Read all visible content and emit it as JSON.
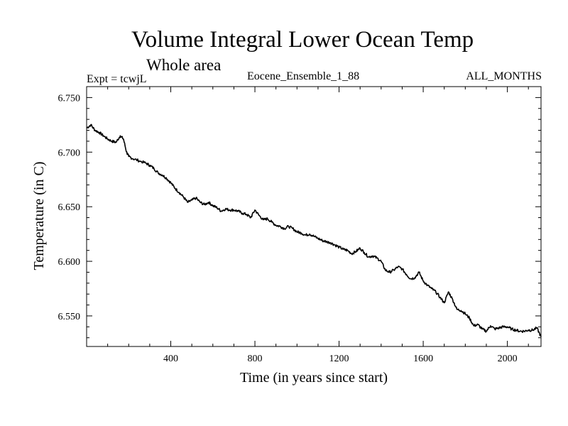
{
  "header": {
    "title": "Volume Integral Lower Ocean Temp",
    "subtitle": "Whole area",
    "expt": "Expt = tcwjL",
    "ensemble": "Eocene_Ensemble_1_88",
    "months": "ALL_MONTHS"
  },
  "chart_data": {
    "type": "line",
    "title": "Volume Integral Lower Ocean Temp",
    "subtitle": "Whole area",
    "xlabel": "Time (in years since start)",
    "ylabel": "Temperature (in C)",
    "xlim": [
      0,
      2160
    ],
    "ylim": [
      6.522,
      6.76
    ],
    "xticks": [
      400,
      800,
      1200,
      1600,
      2000
    ],
    "xtick_labels": [
      "400",
      "800",
      "1200",
      "1600",
      "2000"
    ],
    "yticks": [
      6.55,
      6.6,
      6.65,
      6.7,
      6.75
    ],
    "ytick_labels": [
      "6.550",
      "6.600",
      "6.650",
      "6.700",
      "6.750"
    ],
    "grid": false,
    "series": [
      {
        "color": "#000000",
        "x": [
          0,
          20,
          40,
          60,
          80,
          100,
          120,
          140,
          160,
          175,
          190,
          200,
          220,
          250,
          280,
          300,
          320,
          340,
          360,
          380,
          400,
          420,
          440,
          460,
          480,
          500,
          520,
          540,
          560,
          580,
          600,
          620,
          640,
          660,
          680,
          700,
          720,
          740,
          760,
          780,
          800,
          820,
          840,
          860,
          880,
          900,
          920,
          940,
          960,
          980,
          1000,
          1020,
          1040,
          1060,
          1080,
          1100,
          1120,
          1140,
          1160,
          1180,
          1200,
          1220,
          1240,
          1260,
          1280,
          1300,
          1320,
          1340,
          1360,
          1380,
          1400,
          1420,
          1440,
          1460,
          1480,
          1500,
          1520,
          1540,
          1560,
          1580,
          1600,
          1620,
          1640,
          1660,
          1680,
          1700,
          1720,
          1740,
          1760,
          1780,
          1800,
          1820,
          1840,
          1860,
          1880,
          1900,
          1920,
          1940,
          1960,
          1980,
          2000,
          2020,
          2040,
          2060,
          2080,
          2100,
          2120,
          2140,
          2160
        ],
        "y": [
          6.722,
          6.725,
          6.72,
          6.718,
          6.715,
          6.712,
          6.71,
          6.709,
          6.715,
          6.712,
          6.7,
          6.696,
          6.694,
          6.692,
          6.69,
          6.688,
          6.685,
          6.681,
          6.679,
          6.676,
          6.672,
          6.667,
          6.663,
          6.659,
          6.654,
          6.656,
          6.658,
          6.654,
          6.652,
          6.654,
          6.651,
          6.649,
          6.646,
          6.648,
          6.647,
          6.647,
          6.646,
          6.644,
          6.643,
          6.64,
          6.647,
          6.642,
          6.638,
          6.639,
          6.636,
          6.633,
          6.632,
          6.63,
          6.632,
          6.63,
          6.627,
          6.626,
          6.624,
          6.625,
          6.623,
          6.621,
          6.619,
          6.618,
          6.617,
          6.615,
          6.613,
          6.611,
          6.61,
          6.607,
          6.609,
          6.612,
          6.608,
          6.604,
          6.605,
          6.603,
          6.6,
          6.592,
          6.59,
          6.592,
          6.595,
          6.593,
          6.588,
          6.584,
          6.585,
          6.59,
          6.582,
          6.578,
          6.575,
          6.572,
          6.567,
          6.562,
          6.572,
          6.565,
          6.556,
          6.555,
          6.552,
          6.548,
          6.541,
          6.542,
          6.538,
          6.536,
          6.541,
          6.538,
          6.539,
          6.54,
          6.54,
          6.538,
          6.537,
          6.536,
          6.536,
          6.537,
          6.537,
          6.539,
          6.531
        ]
      }
    ]
  }
}
